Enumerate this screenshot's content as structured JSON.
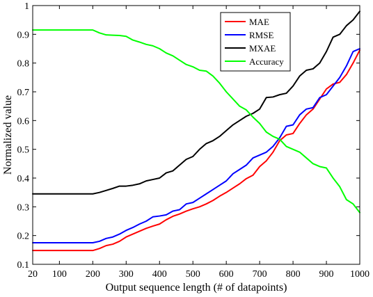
{
  "chart_data": {
    "type": "line",
    "title": "",
    "xlabel": "Output sequence length (# of datapoints)",
    "ylabel": "Normalized value",
    "xlim": [
      20,
      1000
    ],
    "ylim": [
      0.1,
      1
    ],
    "xticks": [
      20,
      100,
      200,
      300,
      400,
      500,
      600,
      700,
      800,
      900,
      1000
    ],
    "xtick_labels": [
      "20",
      "100",
      "200",
      "300",
      "400",
      "500",
      "600",
      "700",
      "800",
      "900",
      "1000"
    ],
    "yticks": [
      0.1,
      0.2,
      0.3,
      0.4,
      0.5,
      0.6,
      0.7,
      0.8,
      0.9,
      1
    ],
    "ytick_labels": [
      "0.1",
      "0.2",
      "0.3",
      "0.4",
      "0.5",
      "0.6",
      "0.7",
      "0.8",
      "0.9",
      "1"
    ],
    "grid": false,
    "legend_position": "top-right",
    "series": [
      {
        "name": "MAE",
        "color": "#ff0000",
        "x": [
          20,
          200,
          220,
          240,
          260,
          280,
          300,
          320,
          340,
          360,
          380,
          400,
          420,
          440,
          460,
          480,
          500,
          520,
          540,
          560,
          580,
          600,
          620,
          640,
          660,
          680,
          700,
          720,
          740,
          760,
          780,
          800,
          820,
          840,
          860,
          880,
          900,
          920,
          940,
          960,
          980,
          1000
        ],
        "values": [
          0.148,
          0.148,
          0.155,
          0.165,
          0.17,
          0.18,
          0.195,
          0.205,
          0.215,
          0.225,
          0.233,
          0.24,
          0.255,
          0.267,
          0.275,
          0.285,
          0.293,
          0.3,
          0.31,
          0.322,
          0.337,
          0.35,
          0.365,
          0.38,
          0.398,
          0.41,
          0.44,
          0.46,
          0.49,
          0.53,
          0.55,
          0.555,
          0.59,
          0.62,
          0.64,
          0.675,
          0.71,
          0.727,
          0.733,
          0.76,
          0.8,
          0.845
        ]
      },
      {
        "name": "RMSE",
        "color": "#0000ff",
        "x": [
          20,
          200,
          220,
          240,
          260,
          280,
          300,
          320,
          340,
          360,
          380,
          400,
          420,
          440,
          460,
          480,
          500,
          520,
          540,
          560,
          580,
          600,
          620,
          640,
          660,
          680,
          700,
          720,
          740,
          760,
          780,
          800,
          820,
          840,
          860,
          880,
          900,
          920,
          940,
          960,
          980,
          1000
        ],
        "values": [
          0.175,
          0.175,
          0.18,
          0.19,
          0.195,
          0.205,
          0.218,
          0.228,
          0.24,
          0.25,
          0.265,
          0.268,
          0.272,
          0.285,
          0.29,
          0.31,
          0.315,
          0.33,
          0.345,
          0.36,
          0.375,
          0.39,
          0.415,
          0.43,
          0.445,
          0.47,
          0.48,
          0.49,
          0.51,
          0.54,
          0.58,
          0.585,
          0.62,
          0.64,
          0.645,
          0.68,
          0.69,
          0.72,
          0.75,
          0.79,
          0.84,
          0.85
        ]
      },
      {
        "name": "MXAE",
        "color": "#000000",
        "x": [
          20,
          200,
          220,
          240,
          260,
          280,
          300,
          320,
          340,
          360,
          380,
          400,
          420,
          440,
          460,
          480,
          500,
          520,
          540,
          560,
          580,
          600,
          620,
          640,
          660,
          680,
          700,
          720,
          740,
          760,
          780,
          800,
          820,
          840,
          860,
          880,
          900,
          920,
          940,
          960,
          980,
          1000
        ],
        "values": [
          0.345,
          0.345,
          0.35,
          0.357,
          0.364,
          0.372,
          0.372,
          0.375,
          0.38,
          0.39,
          0.395,
          0.4,
          0.418,
          0.425,
          0.445,
          0.465,
          0.475,
          0.5,
          0.52,
          0.53,
          0.545,
          0.565,
          0.585,
          0.6,
          0.615,
          0.625,
          0.64,
          0.68,
          0.682,
          0.69,
          0.695,
          0.72,
          0.755,
          0.775,
          0.78,
          0.8,
          0.84,
          0.89,
          0.9,
          0.93,
          0.95,
          0.98
        ]
      },
      {
        "name": "Accuracy",
        "color": "#00ff00",
        "x": [
          20,
          200,
          220,
          240,
          260,
          280,
          300,
          320,
          340,
          360,
          380,
          400,
          420,
          440,
          460,
          480,
          500,
          520,
          540,
          560,
          580,
          600,
          620,
          640,
          660,
          680,
          700,
          720,
          740,
          760,
          780,
          800,
          820,
          840,
          860,
          880,
          900,
          920,
          940,
          960,
          980,
          1000
        ],
        "values": [
          0.915,
          0.915,
          0.905,
          0.898,
          0.897,
          0.896,
          0.893,
          0.88,
          0.873,
          0.865,
          0.86,
          0.85,
          0.835,
          0.825,
          0.81,
          0.795,
          0.787,
          0.775,
          0.772,
          0.755,
          0.73,
          0.7,
          0.675,
          0.65,
          0.637,
          0.612,
          0.59,
          0.56,
          0.545,
          0.535,
          0.51,
          0.5,
          0.49,
          0.47,
          0.45,
          0.44,
          0.435,
          0.4,
          0.37,
          0.325,
          0.31,
          0.28
        ]
      }
    ]
  }
}
